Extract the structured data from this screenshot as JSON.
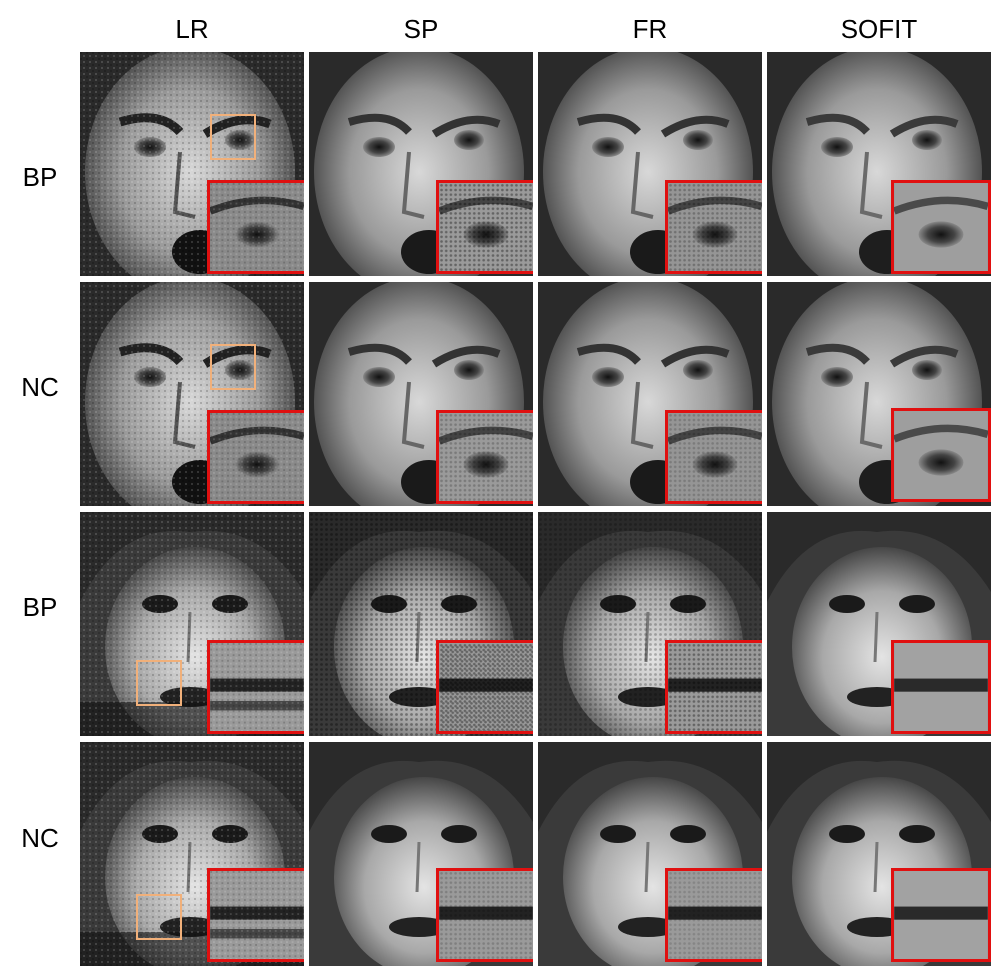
{
  "columns": [
    "LR",
    "SP",
    "FR",
    "SOFIT"
  ],
  "rows": [
    "BP",
    "NC",
    "BP",
    "NC"
  ],
  "colors": {
    "zoom_border": "#e01010",
    "roi_border": "#f1b07a",
    "background": "#ffffff"
  },
  "panels_description_icons": {
    "face": "grayscale-face-image",
    "inset": "zoomed-detail-inset",
    "roi": "region-of-interest-box"
  }
}
